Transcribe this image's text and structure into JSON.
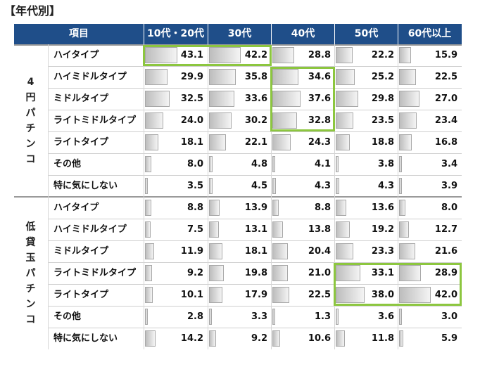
{
  "title": "【年代別】",
  "header": {
    "item": "項目",
    "columns": [
      "10代・20代",
      "30代",
      "40代",
      "50代",
      "60代以上"
    ]
  },
  "groups": [
    {
      "label": "4円パチンコ",
      "rows": [
        {
          "label": "ハイタイプ",
          "values": [
            43.1,
            42.2,
            28.8,
            22.2,
            15.9
          ]
        },
        {
          "label": "ハイミドルタイプ",
          "values": [
            29.9,
            35.8,
            34.6,
            25.2,
            22.5
          ]
        },
        {
          "label": "ミドルタイプ",
          "values": [
            32.5,
            33.6,
            37.6,
            29.8,
            27.0
          ]
        },
        {
          "label": "ライトミドルタイプ",
          "values": [
            24.0,
            30.2,
            32.8,
            23.5,
            23.4
          ]
        },
        {
          "label": "ライトタイプ",
          "values": [
            18.1,
            22.1,
            24.3,
            18.8,
            16.8
          ]
        },
        {
          "label": "その他",
          "values": [
            8.0,
            4.8,
            4.1,
            3.8,
            3.4
          ]
        },
        {
          "label": "特に気にしない",
          "values": [
            3.5,
            4.5,
            4.3,
            4.3,
            3.9
          ]
        }
      ]
    },
    {
      "label": "低貸玉パチンコ",
      "rows": [
        {
          "label": "ハイタイプ",
          "values": [
            8.8,
            13.9,
            8.8,
            13.6,
            8.0
          ]
        },
        {
          "label": "ハイミドルタイプ",
          "values": [
            7.5,
            13.1,
            13.8,
            19.2,
            12.7
          ]
        },
        {
          "label": "ミドルタイプ",
          "values": [
            11.9,
            18.1,
            20.4,
            23.3,
            21.6
          ]
        },
        {
          "label": "ライトミドルタイプ",
          "values": [
            9.2,
            19.8,
            21.0,
            33.1,
            28.9
          ]
        },
        {
          "label": "ライトタイプ",
          "values": [
            10.1,
            17.9,
            22.5,
            38.0,
            42.0
          ]
        },
        {
          "label": "その他",
          "values": [
            2.8,
            3.3,
            1.3,
            3.6,
            3.0
          ]
        },
        {
          "label": "特に気にしない",
          "values": [
            14.2,
            9.2,
            10.6,
            11.8,
            5.9
          ]
        }
      ]
    }
  ],
  "highlights": [
    {
      "group": 0,
      "col_from": 0,
      "col_to": 1,
      "row_from": 0,
      "row_to": 0
    },
    {
      "group": 0,
      "col_from": 2,
      "col_to": 2,
      "row_from": 1,
      "row_to": 3
    },
    {
      "group": 1,
      "col_from": 3,
      "col_to": 4,
      "row_from": 3,
      "row_to": 4
    }
  ],
  "colors": {
    "header_bg": "#1f4e89",
    "highlight": "#8cc63f",
    "bar": "#c8c8c8"
  }
}
